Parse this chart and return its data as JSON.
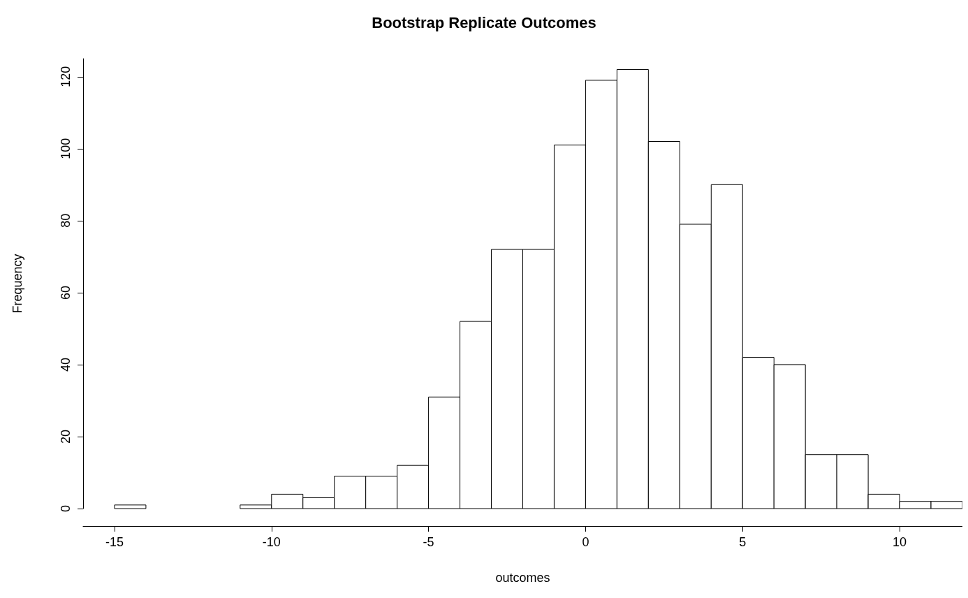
{
  "chart_data": {
    "type": "histogram",
    "title": "Bootstrap Replicate Outcomes",
    "xlabel": "outcomes",
    "ylabel": "Frequency",
    "bins": [
      -15,
      -14,
      -13,
      -12,
      -11,
      -10,
      -9,
      -8,
      -7,
      -6,
      -5,
      -4,
      -3,
      -2,
      -1,
      0,
      1,
      2,
      3,
      4,
      5,
      6,
      7,
      8,
      9,
      10,
      11,
      12
    ],
    "values": [
      1,
      0,
      0,
      0,
      1,
      4,
      3,
      9,
      9,
      12,
      31,
      52,
      72,
      72,
      101,
      119,
      122,
      102,
      79,
      90,
      42,
      40,
      15,
      15,
      4,
      2,
      2
    ],
    "color": "#ffffff",
    "xlim": [
      -16,
      12
    ],
    "xticks": [
      -15,
      -10,
      -5,
      0,
      5,
      10
    ],
    "ylim": [
      0,
      125
    ],
    "yticks": [
      0,
      20,
      40,
      60,
      80,
      100,
      120
    ],
    "grid": false
  }
}
